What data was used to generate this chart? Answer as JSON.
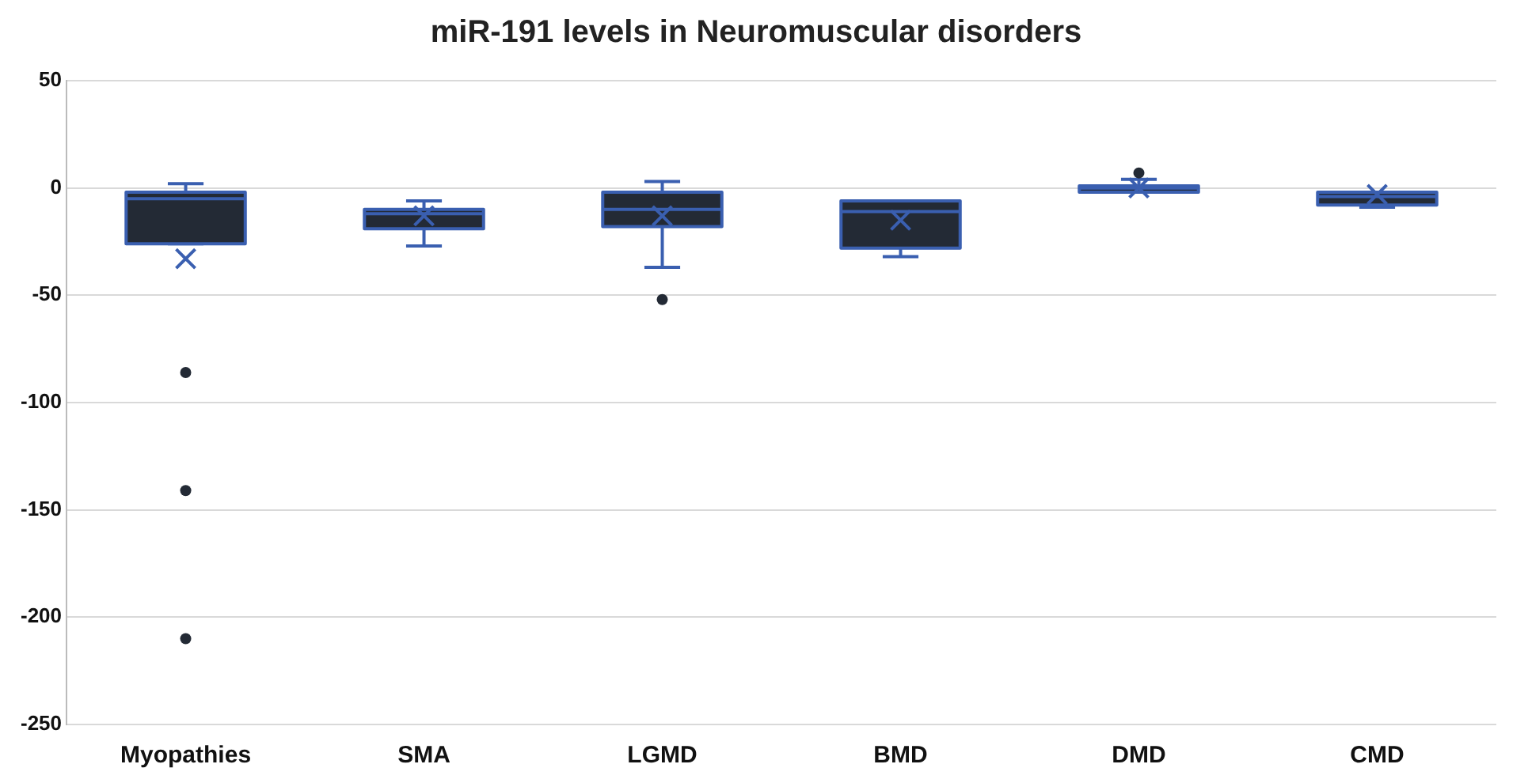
{
  "chart_data": {
    "type": "box",
    "title": "miR-191 levels in Neuromuscular disorders",
    "categories": [
      "Myopathies",
      "SMA",
      "LGMD",
      "BMD",
      "DMD",
      "CMD"
    ],
    "color": "#232a35",
    "boxes": [
      {
        "low": -26,
        "q1": -26,
        "median": -5,
        "q3": -2,
        "high": 2,
        "mean": -33,
        "outliers": [
          -86,
          -141,
          -210
        ]
      },
      {
        "low": -27,
        "q1": -19,
        "median": -12,
        "q3": -10,
        "high": -6,
        "mean": -13
      },
      {
        "low": -37,
        "q1": -18,
        "median": -10,
        "q3": -2,
        "high": 3,
        "mean": -13,
        "outliers": [
          -52
        ]
      },
      {
        "low": -32,
        "q1": -28,
        "median": -11,
        "q3": -6,
        "high": -6,
        "mean": -15
      },
      {
        "low": -2,
        "q1": -2,
        "median": 0,
        "q3": 1,
        "high": 4,
        "mean": 0,
        "outliers": [
          7
        ]
      },
      {
        "low": -9,
        "q1": -8,
        "median": -4,
        "q3": -2,
        "high": -2,
        "mean": -3
      }
    ],
    "ylim": [
      -250,
      50
    ],
    "yticks": [
      -250,
      -200,
      -150,
      -100,
      -50,
      0,
      50
    ],
    "grid": "y",
    "legend": false
  }
}
